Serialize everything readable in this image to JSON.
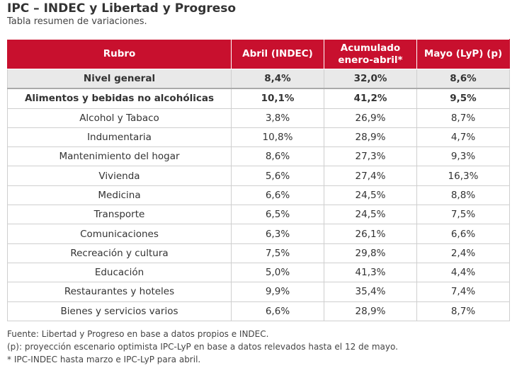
{
  "title": "IPC – INDEC y Libertad y Progreso",
  "subtitle": "Tabla resumen de variaciones.",
  "table": {
    "headers": [
      "Rubro",
      "Abril (INDEC)",
      "Acumulado enero-abril*",
      "Mayo (LyP) (p)"
    ],
    "header_bg_color": "#c8102e",
    "rows": [
      [
        "Nivel general",
        "8,4%",
        "32,0%",
        "8,6%"
      ],
      [
        "Alimentos y bebidas no alcohólicas",
        "10,1%",
        "41,2%",
        "9,5%"
      ],
      [
        "Alcohol y Tabaco",
        "3,8%",
        "26,9%",
        "8,7%"
      ],
      [
        "Indumentaria",
        "10,8%",
        "28,9%",
        "4,7%"
      ],
      [
        "Mantenimiento del hogar",
        "8,6%",
        "27,3%",
        "9,3%"
      ],
      [
        "Vivienda",
        "5,6%",
        "27,4%",
        "16,3%"
      ],
      [
        "Medicina",
        "6,6%",
        "24,5%",
        "8,8%"
      ],
      [
        "Transporte",
        "6,5%",
        "24,5%",
        "7,5%"
      ],
      [
        "Comunicaciones",
        "6,3%",
        "26,1%",
        "6,6%"
      ],
      [
        "Recreación y cultura",
        "7,5%",
        "29,8%",
        "2,4%"
      ],
      [
        "Educación",
        "5,0%",
        "41,3%",
        "4,4%"
      ],
      [
        "Restaurantes y hoteles",
        "9,9%",
        "35,4%",
        "7,4%"
      ],
      [
        "Bienes y servicios varios",
        "6,6%",
        "28,9%",
        "8,7%"
      ]
    ]
  },
  "notes": [
    "Fuente: Libertad y Progreso en base a datos propios e INDEC.",
    "(p): proyección escenario optimista IPC-LyP en base a datos relevados hasta el 12 de mayo.",
    "* IPC-INDEC hasta marzo e IPC-LyP para abril."
  ]
}
